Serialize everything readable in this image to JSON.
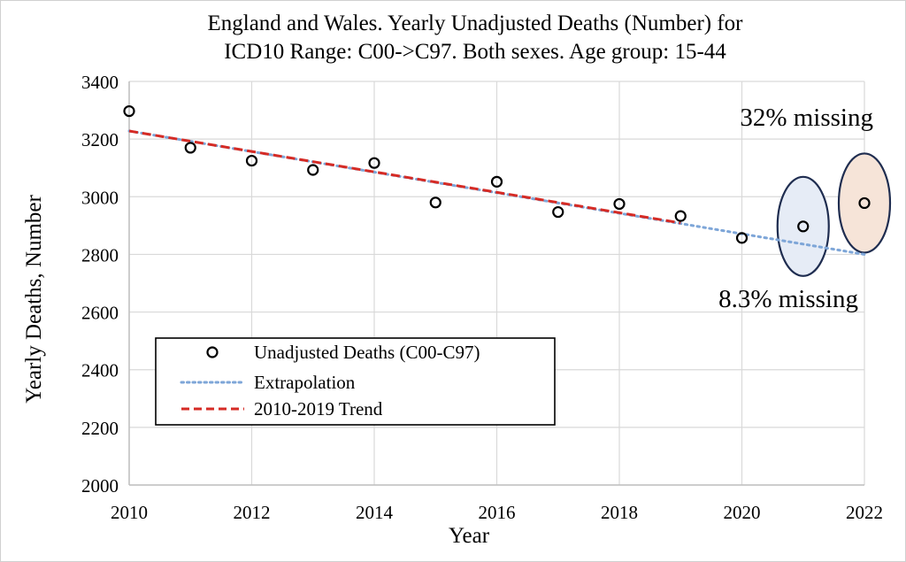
{
  "chart_data": {
    "type": "scatter",
    "title": "England and Wales. Yearly Unadjusted Deaths (Number) for",
    "subtitle": "ICD10 Range: C00->C97. Both sexes. Age group: 15-44",
    "xlabel": "Year",
    "ylabel": "Yearly Deaths, Number",
    "xlim": [
      2010,
      2022
    ],
    "ylim": [
      2000,
      3400
    ],
    "x_ticks": [
      2010,
      2012,
      2014,
      2016,
      2018,
      2020,
      2022
    ],
    "y_ticks": [
      2000,
      2200,
      2400,
      2600,
      2800,
      3000,
      3200,
      3400
    ],
    "grid": true,
    "legend_position": "bottom-left",
    "series": [
      {
        "name": "Unadjusted Deaths (C00-C97)",
        "kind": "markers",
        "color": "#000000",
        "x": [
          2010,
          2011,
          2012,
          2013,
          2014,
          2015,
          2016,
          2017,
          2018,
          2019,
          2020,
          2021,
          2022
        ],
        "y": [
          3297,
          3170,
          3125,
          3093,
          3117,
          2980,
          3052,
          2947,
          2975,
          2933,
          2857,
          2897,
          2978
        ]
      },
      {
        "name": "Extrapolation",
        "kind": "dotted-line",
        "color": "#7ea6d8",
        "x": [
          2010,
          2022
        ],
        "y": [
          3228,
          2800
        ]
      },
      {
        "name": "2010-2019 Trend",
        "kind": "dashed-line",
        "color": "#d52b25",
        "x": [
          2010,
          2019
        ],
        "y": [
          3228,
          2909
        ]
      }
    ],
    "annotations": [
      {
        "text": "32% missing"
      },
      {
        "text": "8.3% missing"
      }
    ],
    "highlight_ellipses": [
      {
        "year": 2021,
        "fill": "#e6ecf6",
        "stroke": "#1f2d50"
      },
      {
        "year": 2022,
        "fill": "#f6e4d8",
        "stroke": "#1f2d50"
      }
    ]
  }
}
